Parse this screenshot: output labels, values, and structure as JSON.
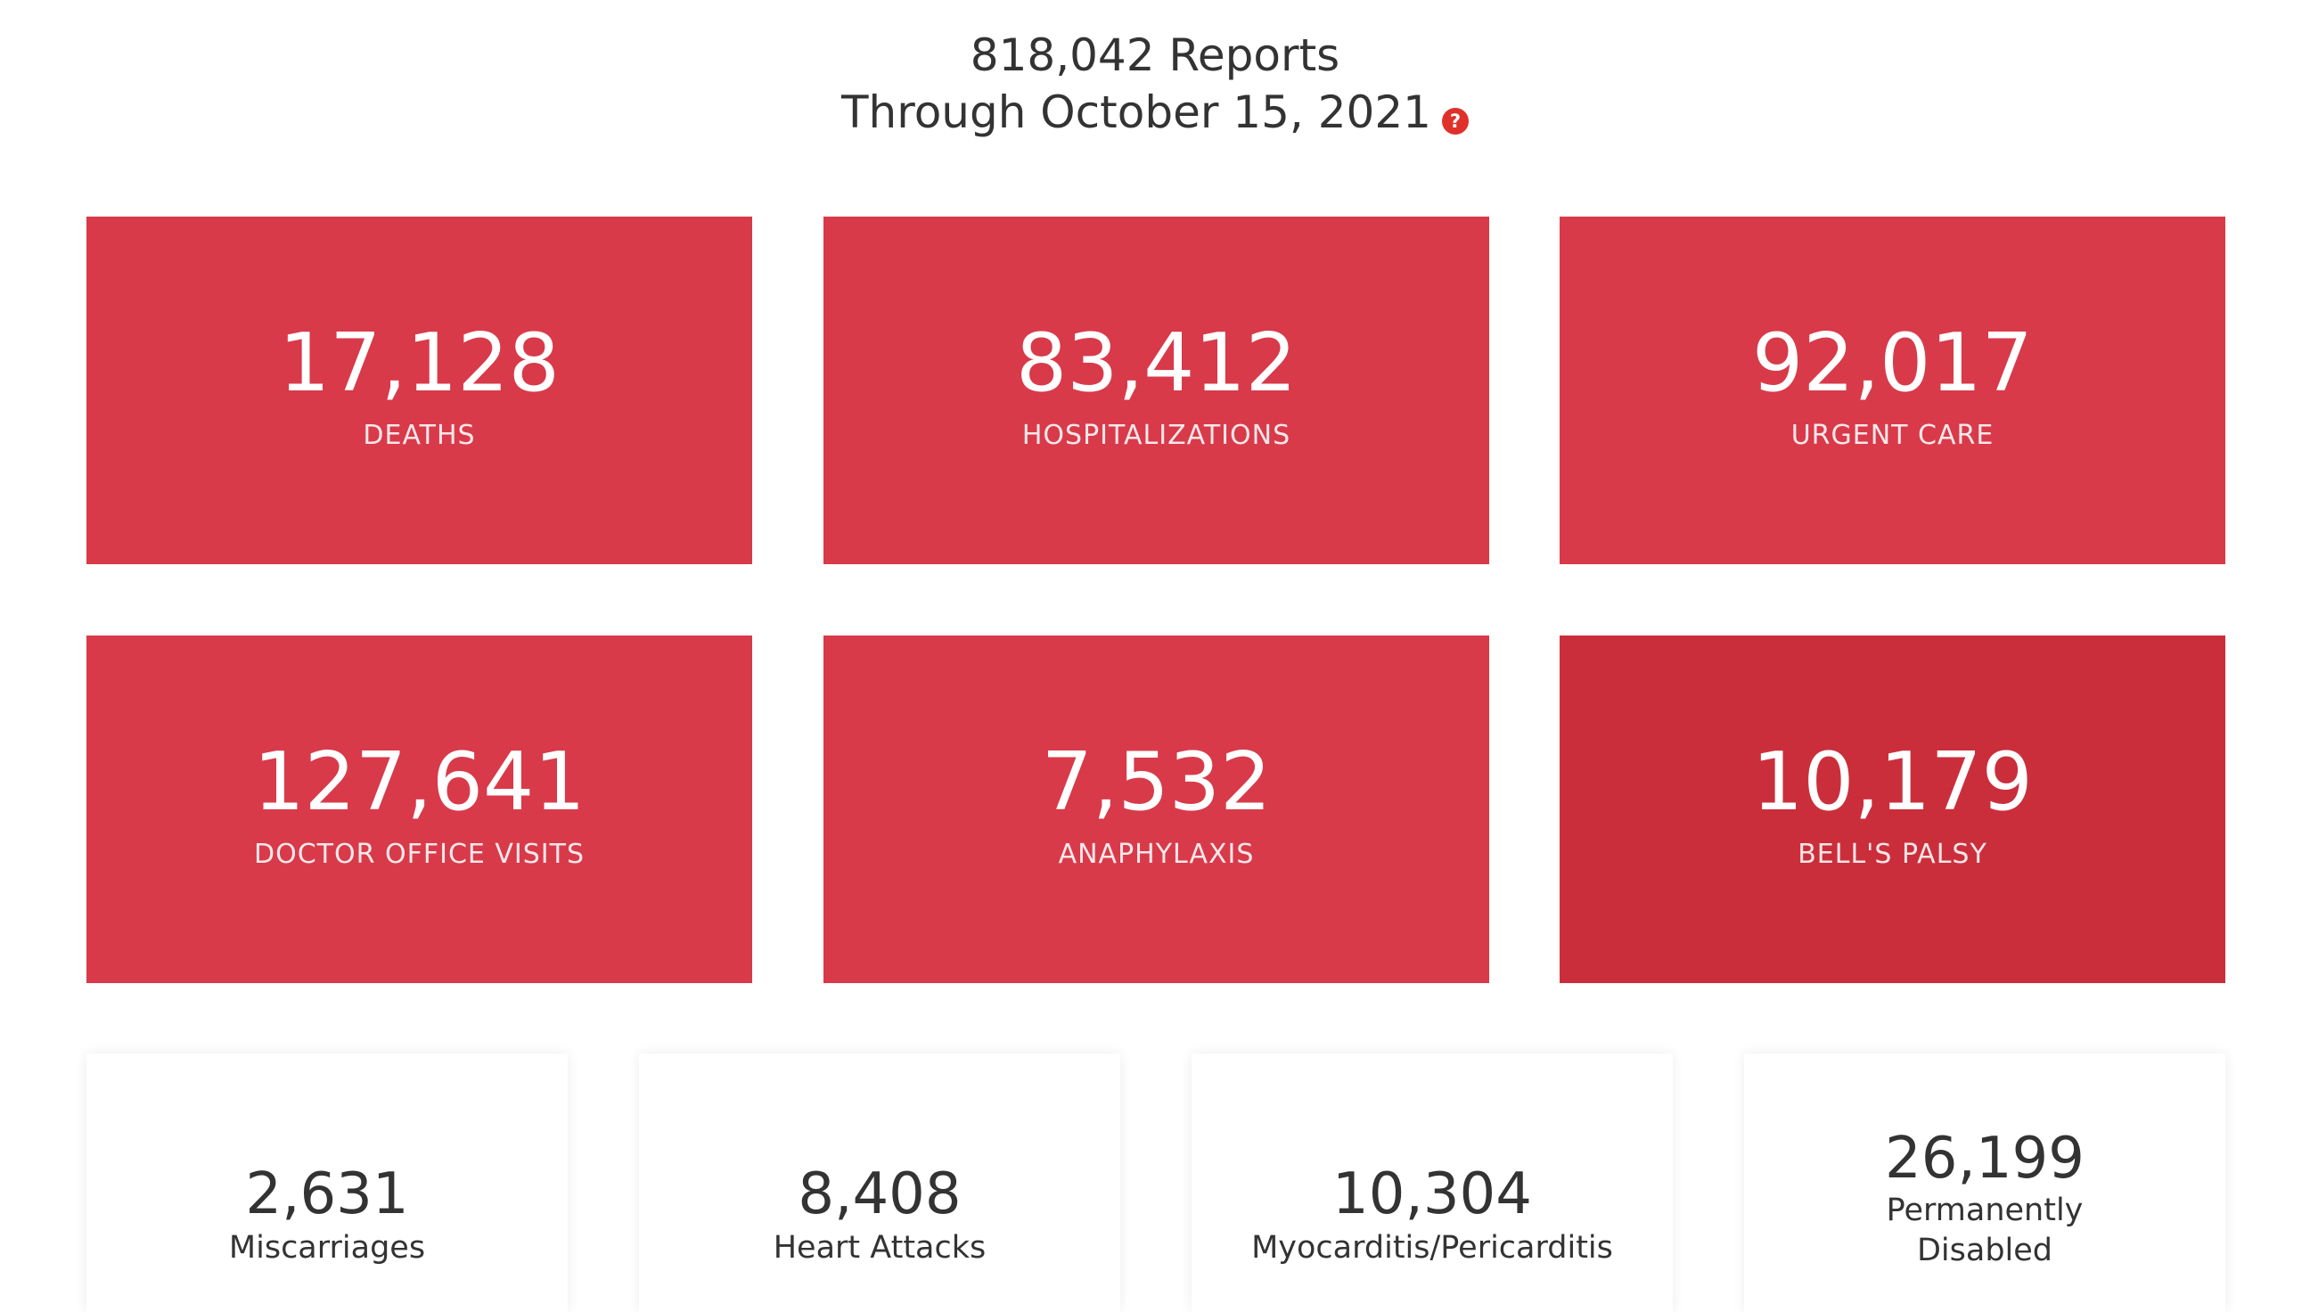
{
  "header": {
    "reports_line": "818,042 Reports",
    "date_line": "Through October 15, 2021",
    "help_icon_glyph": "?",
    "help_icon": "question-circle-icon"
  },
  "colors": {
    "card_red": "#d83a4a",
    "card_red_active": "#cb2e3b",
    "help_red": "#e0302a",
    "text_dark": "#333333"
  },
  "cards": [
    {
      "value": "17,128",
      "label": "DEATHS"
    },
    {
      "value": "83,412",
      "label": "HOSPITALIZATIONS"
    },
    {
      "value": "92,017",
      "label": "URGENT CARE"
    },
    {
      "value": "127,641",
      "label": "DOCTOR OFFICE VISITS"
    },
    {
      "value": "7,532",
      "label": "ANAPHYLAXIS"
    },
    {
      "value": "10,179",
      "label": "BELL'S PALSY"
    }
  ],
  "stats": [
    {
      "value": "2,631",
      "label_line1": "Miscarriages",
      "label_line2": ""
    },
    {
      "value": "8,408",
      "label_line1": "Heart Attacks",
      "label_line2": ""
    },
    {
      "value": "10,304",
      "label_line1": "Myocarditis/Pericarditis",
      "label_line2": ""
    },
    {
      "value": "26,199",
      "label_line1": "Permanently",
      "label_line2": "Disabled"
    }
  ]
}
